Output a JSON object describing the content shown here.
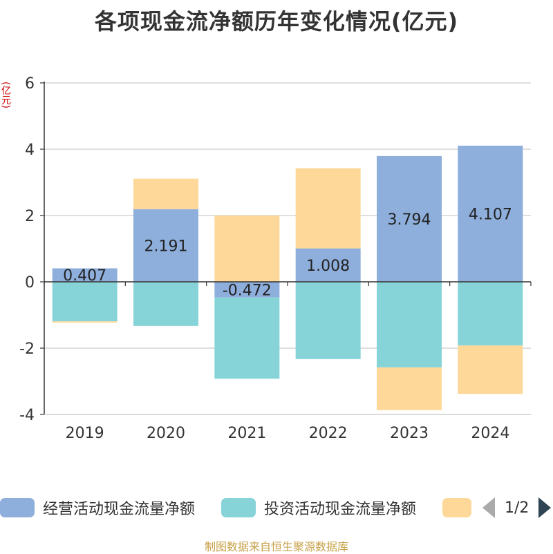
{
  "chart_data": {
    "type": "bar",
    "stacked": true,
    "title": "各项现金流净额历年变化情况(亿元)",
    "ylabel": "(亿元)",
    "categories": [
      "2019",
      "2020",
      "2021",
      "2022",
      "2023",
      "2024"
    ],
    "ylim": [
      -4,
      6
    ],
    "yticks": [
      -4,
      -2,
      0,
      2,
      4,
      6
    ],
    "grid": true,
    "legend_position": "bottom",
    "series": [
      {
        "name": "经营活动现金流量净额",
        "color": "#8eaedb",
        "values": [
          0.407,
          2.191,
          -0.472,
          1.008,
          3.794,
          4.107
        ],
        "labels": [
          "0.407",
          "2.191",
          "-0.472",
          "1.008",
          "3.794",
          "4.107"
        ]
      },
      {
        "name": "投资活动现金流量净额",
        "color": "#86d4d8",
        "values": [
          -1.19,
          -1.33,
          -2.45,
          -2.33,
          -2.58,
          -1.92
        ]
      },
      {
        "name": "",
        "color": "#fdd899",
        "values": [
          -0.04,
          0.92,
          2.0,
          2.42,
          -1.29,
          -1.46
        ]
      }
    ]
  },
  "legend": {
    "items": [
      {
        "label": "经营活动现金流量净额",
        "color": "#8eaedb"
      },
      {
        "label": "投资活动现金流量净额",
        "color": "#86d4d8"
      },
      {
        "label": "",
        "color": "#fdd899"
      }
    ],
    "page": "1/2"
  },
  "source": "制图数据来自恒生聚源数据库"
}
